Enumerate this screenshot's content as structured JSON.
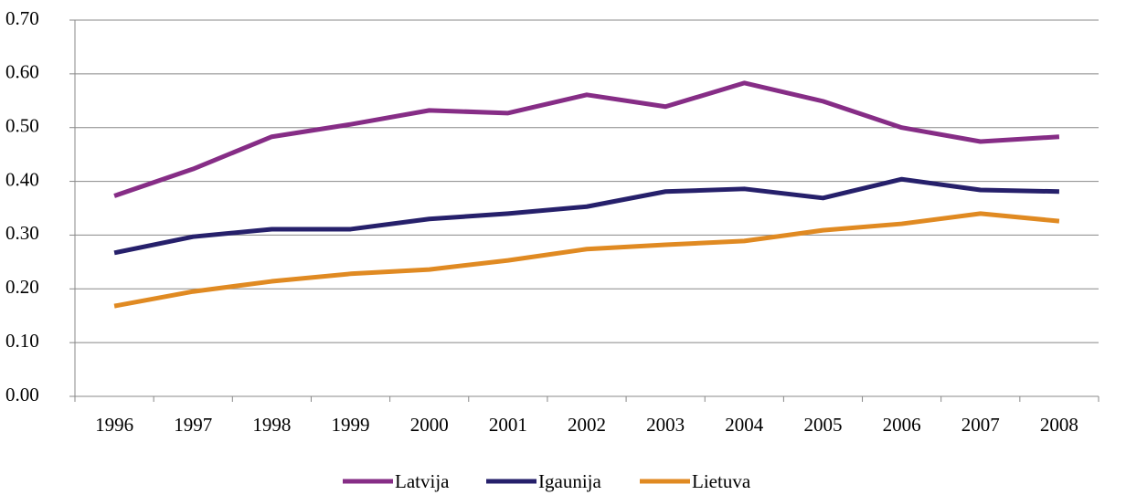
{
  "chart_data": {
    "type": "line",
    "categories": [
      "1996",
      "1997",
      "1998",
      "1999",
      "2000",
      "2001",
      "2002",
      "2003",
      "2004",
      "2005",
      "2006",
      "2007",
      "2008"
    ],
    "series": [
      {
        "name": "Latvija",
        "color": "#862d86",
        "values": [
          0.373,
          0.423,
          0.483,
          0.506,
          0.532,
          0.527,
          0.561,
          0.539,
          0.583,
          0.549,
          0.5,
          0.474,
          0.483
        ]
      },
      {
        "name": "Igaunija",
        "color": "#26206b",
        "values": [
          0.267,
          0.297,
          0.311,
          0.311,
          0.33,
          0.34,
          0.353,
          0.381,
          0.386,
          0.369,
          0.404,
          0.384,
          0.381
        ]
      },
      {
        "name": "Lietuva",
        "color": "#e08a22",
        "values": [
          0.168,
          0.195,
          0.214,
          0.228,
          0.236,
          0.253,
          0.274,
          0.282,
          0.289,
          0.309,
          0.321,
          0.34,
          0.326
        ]
      }
    ],
    "ylim": [
      0,
      0.7
    ],
    "yticks": [
      {
        "value": 0,
        "label": "0.00"
      },
      {
        "value": 0.1,
        "label": "0.10"
      },
      {
        "value": 0.2,
        "label": "0.20"
      },
      {
        "value": 0.3,
        "label": "0.30"
      },
      {
        "value": 0.4,
        "label": "0.40"
      },
      {
        "value": 0.5,
        "label": "0.50"
      },
      {
        "value": 0.6,
        "label": "0.60"
      },
      {
        "value": 0.7,
        "label": "0.70"
      }
    ],
    "grid": true,
    "legend": "bottom"
  }
}
